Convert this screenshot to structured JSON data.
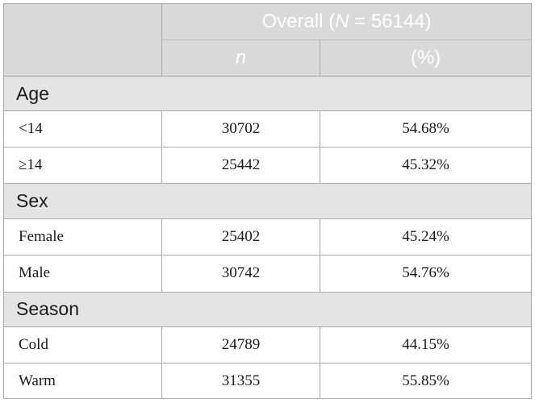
{
  "header": {
    "overall_prefix": "Overall (",
    "overall_var": "N",
    "overall_suffix": " = 56144)",
    "col_n": "n",
    "col_pct": "(%)"
  },
  "sections": {
    "age": {
      "label": "Age",
      "rows": [
        {
          "label": "<14",
          "n": "30702",
          "pct": "54.68%"
        },
        {
          "label": "≥14",
          "n": "25442",
          "pct": "45.32%"
        }
      ]
    },
    "sex": {
      "label": "Sex",
      "rows": [
        {
          "label": "Female",
          "n": "25402",
          "pct": "45.24%"
        },
        {
          "label": "Male",
          "n": "30742",
          "pct": "54.76%"
        }
      ]
    },
    "season": {
      "label": "Season",
      "rows": [
        {
          "label": "Cold",
          "n": "24789",
          "pct": "44.15%"
        },
        {
          "label": "Warm",
          "n": "31355",
          "pct": "55.85%"
        }
      ]
    }
  }
}
